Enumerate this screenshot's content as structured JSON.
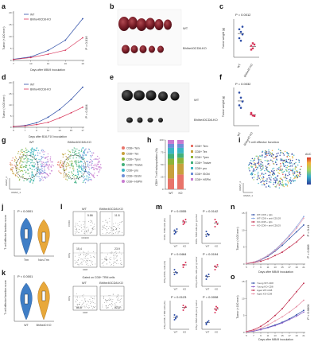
{
  "labels": {
    "a": "a",
    "b": "b",
    "c": "c",
    "d": "d",
    "e": "e",
    "f": "f",
    "g": "g",
    "h": "h",
    "i": "i",
    "j": "j",
    "k": "k",
    "l": "l",
    "m": "m",
    "n": "n",
    "o": "o"
  },
  "panel_a": {
    "ylabel": "Tumor (×100 mm³)",
    "xlabel": "Days after MB49 inoculation",
    "xticks": [
      "7",
      "10",
      "13",
      "16",
      "19"
    ],
    "yticks": [
      "0",
      "5",
      "10",
      "15",
      "20"
    ],
    "legend": [
      "WT",
      "Bhlhe40CD8-KO"
    ],
    "pval": "P = 0.016"
  },
  "panel_b": {
    "label_wt": "WT",
    "label_ko": "Bhlhe40CD8-KO"
  },
  "panel_c": {
    "ylabel": "Tumor weight (g)",
    "pval": "P = 0.0012",
    "xcats": [
      "WT",
      "Bhlhe40 KO"
    ],
    "yticks": [
      "0",
      "0.5",
      "1.0",
      "1.5"
    ]
  },
  "panel_d": {
    "ylabel": "Tumor (×100 mm³)",
    "xlabel": "Days after B16-F10 inoculation",
    "xticks": [
      "5",
      "7",
      "9",
      "11",
      "13",
      "15",
      "17"
    ],
    "yticks": [
      "0",
      "5",
      "10",
      "15",
      "20"
    ],
    "legend": [
      "WT",
      "Bhlhe40CD8-KO"
    ],
    "pval": "P = 0.004"
  },
  "panel_e": {
    "label_wt": "WT",
    "label_ko": "Bhlhe40CD8-KO"
  },
  "panel_f": {
    "ylabel": "Tumor weight (g)",
    "pval": "P = 0.0032",
    "xcats": [
      "WT",
      "Bhlhe40 KO"
    ],
    "yticks": [
      "0",
      "0.5",
      "1.0",
      "1.5"
    ]
  },
  "panel_g": {
    "title_wt": "WT",
    "title_ko": "Bhlhe40CD8-KO",
    "xaxis": "UMAP_1",
    "yaxis": "UMAP_2",
    "legend": [
      {
        "name": "CD8+ Tem",
        "color": "#e8746a"
      },
      {
        "name": "CD8+ Tex",
        "color": "#c7a03c"
      },
      {
        "name": "CD8+ Tpex",
        "color": "#8cb43a"
      },
      {
        "name": "CD8+ Tnaive",
        "color": "#42b07a"
      },
      {
        "name": "CD8+ pro",
        "color": "#3bb5c4"
      },
      {
        "name": "CD8+ ISGhi",
        "color": "#6e8fd8"
      },
      {
        "name": "CD8+ HSPhi",
        "color": "#c77ad0"
      }
    ]
  },
  "panel_h": {
    "ylabel": "CD8+ T cell subpopulation (%)",
    "xcats": [
      "WT",
      "KO"
    ],
    "yticks": [
      "0",
      "25",
      "50",
      "75",
      "100"
    ],
    "legend": [
      "CD8+ Tem",
      "CD8+ Tex",
      "CD8+ Tpex",
      "CD8+ Tnaive",
      "CD8+ pro",
      "CD8+ ISGhi",
      "CD8+ HSPhi"
    ]
  },
  "panel_i": {
    "title": "T cell effector function",
    "colorbar_title": "AUC",
    "xaxis": "UMAP_1",
    "yaxis": "UMAP_2"
  },
  "panel_j": {
    "ylabel": "T cell effector function score",
    "pval": "P < 0.0001",
    "xcats": [
      "Trm",
      "Non-Trm"
    ]
  },
  "panel_k": {
    "ylabel": "T cell effector function score",
    "pval": "P < 0.0001",
    "xcats": [
      "WT",
      "Bhlhe40 KO"
    ]
  },
  "panel_l": {
    "col_wt": "WT",
    "col_ko": "Bhlhe40CD8-KO",
    "row1_y": "CD69",
    "row1_x": "CD103",
    "row1_wt": "5.86",
    "row1_ko": "11.8",
    "row2_y": "IFNγ",
    "row2_x": "CD8",
    "row2_wt": "15.4",
    "row2_ko": "23.9",
    "gate_note": "Gated on CD8+ TRM cells",
    "row3_y": "IFNγ",
    "row3_x": "CD8",
    "row3_wt": "55.5",
    "row3_ko": "82.8"
  },
  "panel_m": {
    "plots": [
      {
        "ylabel": "CD8+ TRM cells (%)",
        "pval": "P = 0.0055"
      },
      {
        "ylabel": "CD8+ TRM cells per g tumor",
        "pval": "P = 0.0142"
      },
      {
        "ylabel": "IFNγ+CD8+ cells (%)",
        "pval": "P = 0.0464"
      },
      {
        "ylabel": "IFNγ+CD8+ cells per g tumor",
        "pval": "P = 0.0194"
      },
      {
        "ylabel": "IFNγ+CD8+ TRM cells (%)",
        "pval": "P = 0.0123"
      },
      {
        "ylabel": "IFNγ+TRM cells per g tumor",
        "pval": "P = 0.0008"
      }
    ],
    "xcats": [
      "WT",
      "KO"
    ]
  },
  "panel_n": {
    "ylabel": "Tumor (×100 mm³)",
    "xlabel": "Days after MB49 inoculation",
    "legend": [
      {
        "name": "WT-CD8 + IgG",
        "color": "#2f4fa8"
      },
      {
        "name": "WT-CD8 + anti-CD103",
        "color": "#8aa6e0"
      },
      {
        "name": "KO-CD8 + IgG",
        "color": "#c0294a"
      },
      {
        "name": "KO-CD8 + anti-CD103",
        "color": "#eaa0b4"
      }
    ],
    "pvals": [
      "P = 0.41",
      "P = 0.006"
    ],
    "xticks": [
      "5",
      "7",
      "9",
      "11",
      "13",
      "15",
      "17",
      "19",
      "21"
    ],
    "yticks": [
      "0",
      "5",
      "10",
      "15"
    ]
  },
  "panel_o": {
    "ylabel": "Tumor (×100 mm³)",
    "xlabel": "Days after MB49 inoculation",
    "legend": [
      {
        "name": "Young WT-CD8",
        "color": "#2f4fa8"
      },
      {
        "name": "Young KO-CD8",
        "color": "#8a5cc8"
      },
      {
        "name": "Aged WT-CD8",
        "color": "#c0294a"
      },
      {
        "name": "Aged KO-CD8",
        "color": "#e58aa0"
      }
    ],
    "pval": "P < 0.0001",
    "xticks": [
      "5",
      "7",
      "9",
      "11",
      "13",
      "15",
      "17",
      "19",
      "21"
    ],
    "yticks": [
      "0",
      "5",
      "10",
      "15"
    ]
  },
  "chart_data": [
    {
      "type": "line",
      "panel": "a",
      "x": [
        7,
        10,
        13,
        16,
        19
      ],
      "series": [
        {
          "name": "WT",
          "values": [
            0.5,
            1.5,
            4.2,
            8.5,
            17.5
          ]
        },
        {
          "name": "Bhlhe40CD8-KO",
          "values": [
            0.4,
            1.2,
            2.6,
            4.3,
            9.5
          ]
        }
      ],
      "ylim": [
        0,
        20
      ]
    },
    {
      "type": "scatter",
      "panel": "c",
      "categories": [
        "WT",
        "Bhlhe40 KO"
      ],
      "series": [
        {
          "name": "WT",
          "values": [
            1.1,
            1.0,
            0.9,
            0.75,
            0.65,
            1.2
          ]
        },
        {
          "name": "Bhlhe40 KO",
          "values": [
            0.45,
            0.35,
            0.5,
            0.3,
            0.55
          ]
        }
      ],
      "ylim": [
        0,
        1.5
      ]
    },
    {
      "type": "line",
      "panel": "d",
      "x": [
        5,
        7,
        9,
        11,
        13,
        15,
        17
      ],
      "series": [
        {
          "name": "WT",
          "values": [
            0.3,
            0.8,
            2.0,
            4.5,
            8.0,
            12.5,
            18.0
          ]
        },
        {
          "name": "Bhlhe40CD8-KO",
          "values": [
            0.3,
            0.6,
            1.2,
            2.2,
            4.2,
            6.5,
            9.0
          ]
        }
      ],
      "ylim": [
        0,
        20
      ]
    },
    {
      "type": "scatter",
      "panel": "f",
      "categories": [
        "WT",
        "Bhlhe40 KO"
      ],
      "series": [
        {
          "name": "WT",
          "values": [
            1.3,
            1.1,
            0.95,
            0.8,
            0.7
          ]
        },
        {
          "name": "Bhlhe40 KO",
          "values": [
            0.45,
            0.4,
            0.38,
            0.5
          ]
        }
      ],
      "ylim": [
        0,
        1.5
      ]
    },
    {
      "type": "bar",
      "panel": "h",
      "categories": [
        "WT",
        "KO"
      ],
      "series": [
        {
          "name": "CD8+ Tem",
          "values": [
            22,
            30
          ]
        },
        {
          "name": "CD8+ Tex",
          "values": [
            28,
            22
          ]
        },
        {
          "name": "CD8+ Tpex",
          "values": [
            12,
            12
          ]
        },
        {
          "name": "CD8+ Tnaive",
          "values": [
            10,
            9
          ]
        },
        {
          "name": "CD8+ pro",
          "values": [
            12,
            11
          ]
        },
        {
          "name": "CD8+ ISGhi",
          "values": [
            8,
            8
          ]
        },
        {
          "name": "CD8+ HSPhi",
          "values": [
            8,
            8
          ]
        }
      ],
      "ylim": [
        0,
        100
      ]
    },
    {
      "type": "line",
      "panel": "n",
      "x": [
        5,
        7,
        9,
        11,
        13,
        15,
        17,
        19,
        21
      ],
      "series": [
        {
          "name": "WT-CD8 + IgG",
          "values": [
            0.2,
            0.5,
            1.2,
            2.3,
            3.8,
            5.5,
            7.5,
            9.5,
            11.5
          ]
        },
        {
          "name": "WT-CD8 + anti-CD103",
          "values": [
            0.2,
            0.6,
            1.4,
            2.6,
            4.2,
            6.2,
            8.5,
            11.0,
            14.0
          ]
        },
        {
          "name": "KO-CD8 + IgG",
          "values": [
            0.2,
            0.4,
            0.8,
            1.5,
            2.5,
            3.5,
            5.0,
            6.5,
            8.5
          ]
        },
        {
          "name": "KO-CD8 + anti-CD103",
          "values": [
            0.2,
            0.6,
            1.3,
            2.5,
            4.0,
            6.0,
            8.2,
            10.5,
            13.5
          ]
        }
      ],
      "ylim": [
        0,
        15
      ]
    },
    {
      "type": "line",
      "panel": "o",
      "x": [
        5,
        7,
        9,
        11,
        13,
        15,
        17,
        19,
        21
      ],
      "series": [
        {
          "name": "Young WT-CD8",
          "values": [
            0.2,
            0.4,
            0.9,
            1.5,
            2.2,
            3.0,
            4.0,
            5.2,
            6.5
          ]
        },
        {
          "name": "Young KO-CD8",
          "values": [
            0.2,
            0.4,
            0.8,
            1.4,
            2.0,
            2.8,
            3.8,
            4.8,
            6.0
          ]
        },
        {
          "name": "Aged WT-CD8",
          "values": [
            0.3,
            0.8,
            1.8,
            3.2,
            5.0,
            7.0,
            9.5,
            12.0,
            14.5
          ]
        },
        {
          "name": "Aged KO-CD8",
          "values": [
            0.2,
            0.6,
            1.2,
            2.2,
            3.4,
            4.6,
            6.0,
            7.6,
            9.5
          ]
        }
      ],
      "ylim": [
        0,
        15
      ]
    }
  ]
}
